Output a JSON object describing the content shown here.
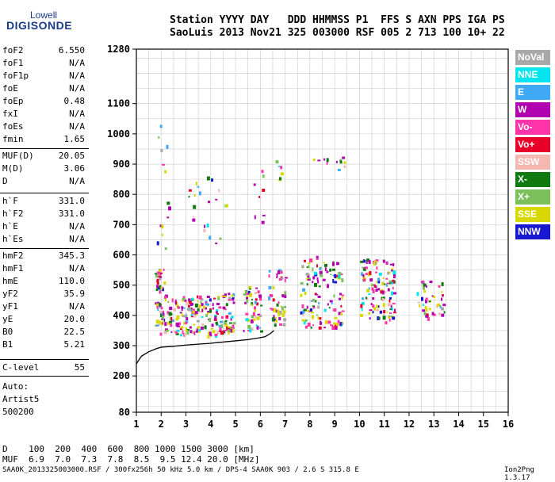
{
  "logo": {
    "line1": "Lowell",
    "line2": "DIGISONDE"
  },
  "header": {
    "line1": "Station YYYY DAY   DDD HHMMSS P1  FFS S AXN PPS IGA PS",
    "line2": "SaoLuis 2013 Nov21 325 003000 RSF 005 2 713 100 10+ 22"
  },
  "params": [
    {
      "name": "foF2",
      "value": "6.550"
    },
    {
      "name": "foF1",
      "value": "N/A"
    },
    {
      "name": "foF1p",
      "value": "N/A"
    },
    {
      "name": "foE",
      "value": "N/A"
    },
    {
      "name": "foEp",
      "value": "0.48"
    },
    {
      "name": "fxI",
      "value": "N/A"
    },
    {
      "name": "foEs",
      "value": "N/A"
    },
    {
      "name": "fmin",
      "value": "1.65"
    },
    {
      "name": "MUF(D)",
      "value": "20.05"
    },
    {
      "name": "M(D)",
      "value": "3.06"
    },
    {
      "name": "D",
      "value": "N/A"
    },
    {
      "name": "h`F",
      "value": "331.0"
    },
    {
      "name": "h`F2",
      "value": "331.0"
    },
    {
      "name": "h`E",
      "value": "N/A"
    },
    {
      "name": "h`Es",
      "value": "N/A"
    },
    {
      "name": "hmF2",
      "value": "345.3"
    },
    {
      "name": "hmF1",
      "value": "N/A"
    },
    {
      "name": "hmE",
      "value": "110.0"
    },
    {
      "name": "yF2",
      "value": "35.9"
    },
    {
      "name": "yF1",
      "value": "N/A"
    },
    {
      "name": "yE",
      "value": "20.0"
    },
    {
      "name": "B0",
      "value": "22.5"
    },
    {
      "name": "B1",
      "value": "5.21"
    },
    {
      "name": "C-level",
      "value": "55"
    }
  ],
  "status": {
    "line1": "Auto:",
    "line2": "Artist5",
    "line3": "500200"
  },
  "legend": [
    {
      "label": "NoVal",
      "color": "#a8a8a8"
    },
    {
      "label": "NNE",
      "color": "#00e5ee"
    },
    {
      "label": "E",
      "color": "#3fa9f5"
    },
    {
      "label": "W",
      "color": "#b000b0"
    },
    {
      "label": "Vo-",
      "color": "#ff33aa"
    },
    {
      "label": "Vo+",
      "color": "#e8002a"
    },
    {
      "label": "SSW",
      "color": "#f4b8b0"
    },
    {
      "label": "X-",
      "color": "#107a10"
    },
    {
      "label": "X+",
      "color": "#7cc05c"
    },
    {
      "label": "SSE",
      "color": "#d8d800"
    },
    {
      "label": "NNW",
      "color": "#1818d0"
    }
  ],
  "bottom": {
    "d_row": "D    100  200  400  600  800 1000 1500 3000 [km]",
    "muf_row": "MUF  6.9  7.0  7.3  7.8  8.5  9.5 12.4 20.0 [MHz]"
  },
  "footer": "SAA0K_2013325003000.RSF / 300fx256h 50 kHz 5.0 km / DPS-4 SAA0K 903 / 2.6 S 315.8 E",
  "version": "Ion2Png 1.3.17",
  "chart_data": {
    "type": "scatter",
    "xlim": [
      1,
      16
    ],
    "ylim": [
      80,
      1280
    ],
    "x_ticks": [
      1,
      2,
      3,
      4,
      5,
      6,
      7,
      8,
      9,
      10,
      11,
      12,
      13,
      14,
      15,
      16
    ],
    "y_ticks": [
      80,
      200,
      300,
      400,
      500,
      600,
      700,
      800,
      900,
      1000,
      1100,
      1280
    ],
    "grid": true,
    "legend_position": "right",
    "xlabel": "",
    "ylabel": "",
    "trace": {
      "name": "",
      "x": [
        1.0,
        1.2,
        1.5,
        1.8,
        2.0,
        2.5,
        3.0,
        3.5,
        4.0,
        4.5,
        5.0,
        5.5,
        5.9,
        6.2,
        6.4,
        6.55
      ],
      "y": [
        240,
        265,
        280,
        290,
        295,
        298,
        302,
        305,
        308,
        312,
        316,
        320,
        325,
        330,
        340,
        350
      ]
    },
    "echo_clusters": [
      {
        "x": [
          1.7,
          2.1
        ],
        "y": [
          340,
          560
        ],
        "n": 55
      },
      {
        "x": [
          2.1,
          3.2
        ],
        "y": [
          335,
          470
        ],
        "n": 85
      },
      {
        "x": [
          3.2,
          4.3
        ],
        "y": [
          335,
          470
        ],
        "n": 80
      },
      {
        "x": [
          4.3,
          4.9
        ],
        "y": [
          345,
          480
        ],
        "n": 55
      },
      {
        "x": [
          5.3,
          6.0
        ],
        "y": [
          350,
          500
        ],
        "n": 50
      },
      {
        "x": [
          6.3,
          7.0
        ],
        "y": [
          365,
          560
        ],
        "n": 50
      },
      {
        "x": [
          7.6,
          8.4
        ],
        "y": [
          360,
          600
        ],
        "n": 70
      },
      {
        "x": [
          8.5,
          9.3
        ],
        "y": [
          360,
          580
        ],
        "n": 55
      },
      {
        "x": [
          10.0,
          11.4
        ],
        "y": [
          380,
          590
        ],
        "n": 120
      },
      {
        "x": [
          12.3,
          13.4
        ],
        "y": [
          390,
          520
        ],
        "n": 45
      },
      {
        "x": [
          1.8,
          2.3
        ],
        "y": [
          600,
          1120
        ],
        "n": 14
      },
      {
        "x": [
          3.0,
          4.6
        ],
        "y": [
          640,
          860
        ],
        "n": 22
      },
      {
        "x": [
          5.6,
          6.1
        ],
        "y": [
          700,
          900
        ],
        "n": 8
      },
      {
        "x": [
          6.6,
          7.0
        ],
        "y": [
          840,
          920
        ],
        "n": 6
      },
      {
        "x": [
          7.8,
          9.4
        ],
        "y": [
          880,
          935
        ],
        "n": 12
      }
    ]
  }
}
